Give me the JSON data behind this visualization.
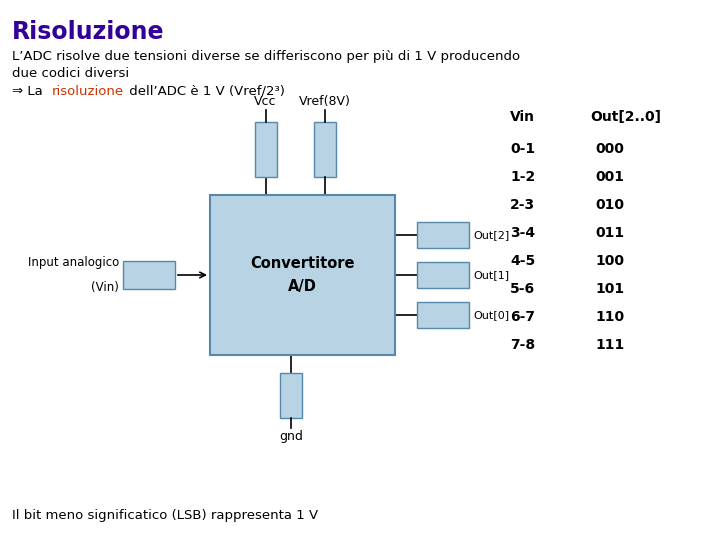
{
  "title": "Risoluzione",
  "title_color": "#330099",
  "background_color": "#ffffff",
  "line1": "L’ADC risolve due tensioni diverse se differiscono per più di 1 V producendo",
  "line2": "due codici diversi",
  "arrow_text": "⇒ La ",
  "risoluzione_text": "risoluzione",
  "risoluzione_color": "#cc3300",
  "rest_of_line3": " dell’ADC è 1 V (Vref/2³)",
  "vcc_label": "Vcc",
  "vref_label": "Vref(8V)",
  "box_label_line1": "Convertitore",
  "box_label_line2": "A/D",
  "input_label_line1": "Input analogico",
  "input_label_line2": "(Vin)",
  "gnd_label": "gnd",
  "out_labels": [
    "Out[2]",
    "Out[1]",
    "Out[0]"
  ],
  "vin_header": "Vin",
  "out_header": "Out[2..0]",
  "table_vin": [
    "0-1",
    "1-2",
    "2-3",
    "3-4",
    "4-5",
    "5-6",
    "6-7",
    "7-8"
  ],
  "table_out": [
    "000",
    "001",
    "010",
    "011",
    "100",
    "101",
    "110",
    "111"
  ],
  "bottom_text": "Il bit meno significatico (LSB) rappresenta 1 V",
  "box_color": "#b8d4e4",
  "box_edge_color": "#5588aa",
  "small_box_color": "#b8d4e4",
  "small_box_edge_color": "#5588aa"
}
